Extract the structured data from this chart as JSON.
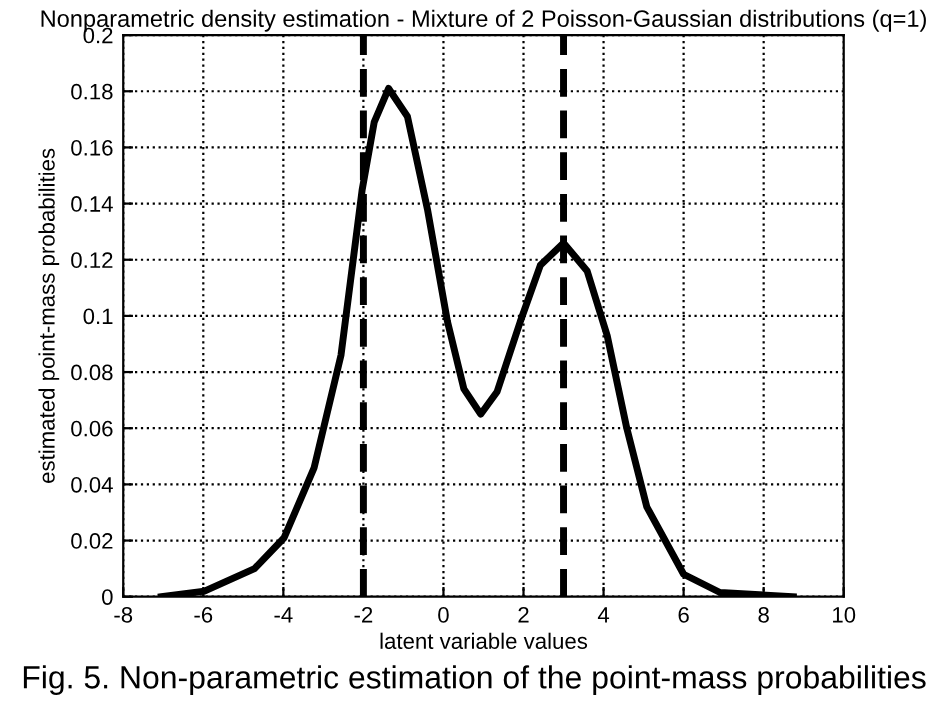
{
  "chart_data": {
    "type": "line",
    "title": "Nonparametric density estimation - Mixture of 2 Poisson-Gaussian distributions (q=1)",
    "xlabel": "latent variable values",
    "ylabel": "estimated point-mass probabilities",
    "annotations": [
      "Fig. 5. Non-parametric estimation of the point-mass probabilities"
    ],
    "x": [
      -7.05,
      -5.97,
      -4.72,
      -3.98,
      -3.23,
      -2.56,
      -2.03,
      -1.73,
      -1.37,
      -0.9,
      -0.4,
      0.1,
      0.51,
      0.93,
      1.34,
      1.92,
      2.42,
      3.0,
      3.59,
      4.09,
      4.58,
      5.08,
      6.0,
      6.91,
      8.74
    ],
    "series": [
      {
        "color": "#000000",
        "values": [
          0,
          0.002,
          0.01,
          0.021,
          0.046,
          0.086,
          0.145,
          0.169,
          0.181,
          0.171,
          0.138,
          0.098,
          0.074,
          0.065,
          0.073,
          0.098,
          0.118,
          0.126,
          0.116,
          0.093,
          0.06,
          0.032,
          0.008,
          0.0015,
          0
        ]
      }
    ],
    "ref_lines": [
      {
        "axis": "x",
        "value": -2,
        "color": "#000000",
        "line_style": "dashed"
      },
      {
        "axis": "x",
        "value": 3,
        "color": "#000000",
        "line_style": "dashed"
      }
    ],
    "xlim": [
      -8,
      10
    ],
    "xticks": [
      -8,
      -6,
      -4,
      -2,
      0,
      2,
      4,
      6,
      8,
      10
    ],
    "ylim": [
      0,
      0.2
    ],
    "yticks": [
      0,
      0.02,
      0.04,
      0.06,
      0.08,
      0.1,
      0.12,
      0.14,
      0.16,
      0.18,
      0.2
    ],
    "grid": true,
    "line_style": "solid"
  }
}
